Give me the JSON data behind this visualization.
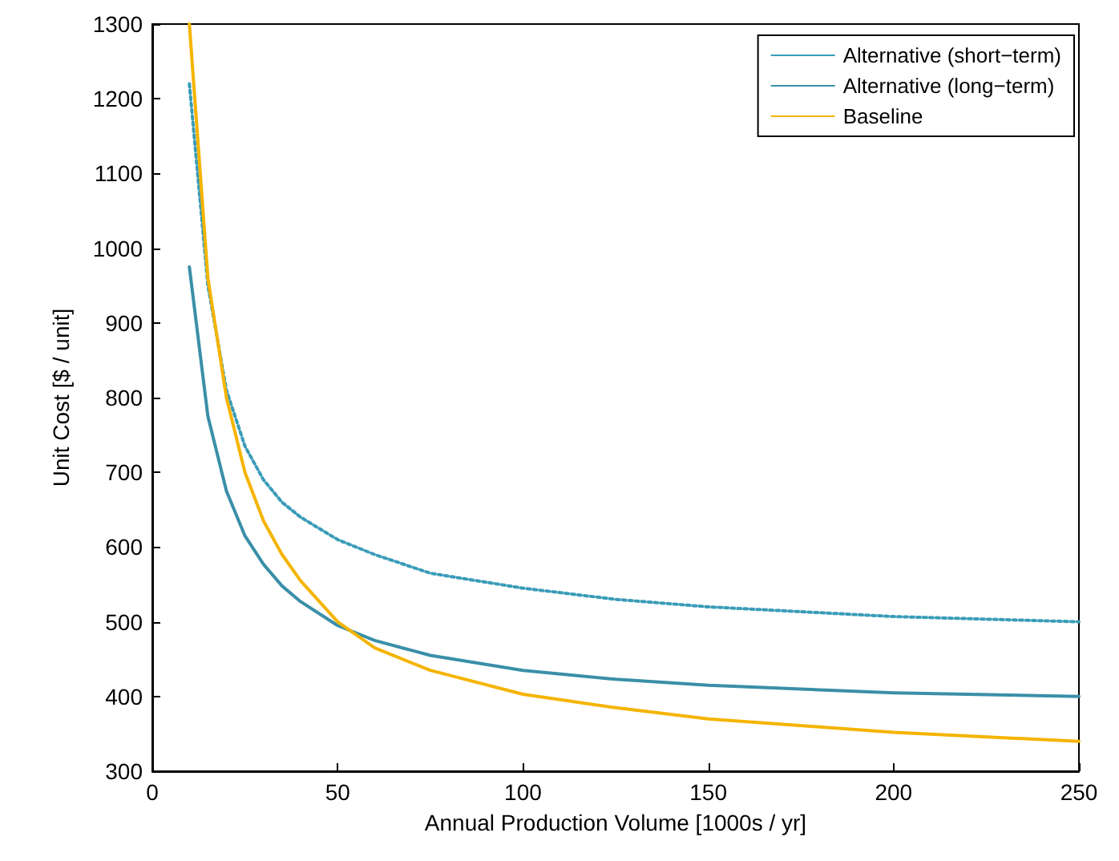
{
  "chart_data": {
    "type": "line",
    "xlabel": "Annual Production Volume [1000s / yr]",
    "ylabel": "Unit Cost [$ / unit]",
    "x": [
      10,
      15,
      20,
      25,
      30,
      35,
      40,
      50,
      60,
      75,
      100,
      125,
      150,
      200,
      250
    ],
    "series": [
      {
        "name": "Alternative (short−term)",
        "color": "#3a9cb8",
        "line_style": "dotted",
        "values": [
          1220,
          950,
          810,
          735,
          690,
          660,
          640,
          610,
          590,
          565,
          545,
          530,
          520,
          507,
          500
        ]
      },
      {
        "name": "Alternative (long−term)",
        "color": "#3a8fa8",
        "line_style": "solid",
        "values": [
          975,
          775,
          675,
          615,
          577,
          548,
          527,
          495,
          475,
          455,
          435,
          423,
          415,
          405,
          400
        ]
      },
      {
        "name": "Baseline",
        "color": "#f5b400",
        "line_style": "solid",
        "values": [
          1300,
          960,
          800,
          700,
          635,
          590,
          555,
          500,
          465,
          435,
          403,
          385,
          370,
          352,
          340
        ]
      }
    ],
    "xlim": [
      0,
      250
    ],
    "xticks": [
      0,
      50,
      100,
      150,
      200,
      250
    ],
    "ylim": [
      300,
      1300
    ],
    "yticks": [
      300,
      400,
      500,
      600,
      700,
      800,
      900,
      1000,
      1100,
      1200,
      1300
    ],
    "grid": false,
    "legend": "top right",
    "marker": "none"
  }
}
